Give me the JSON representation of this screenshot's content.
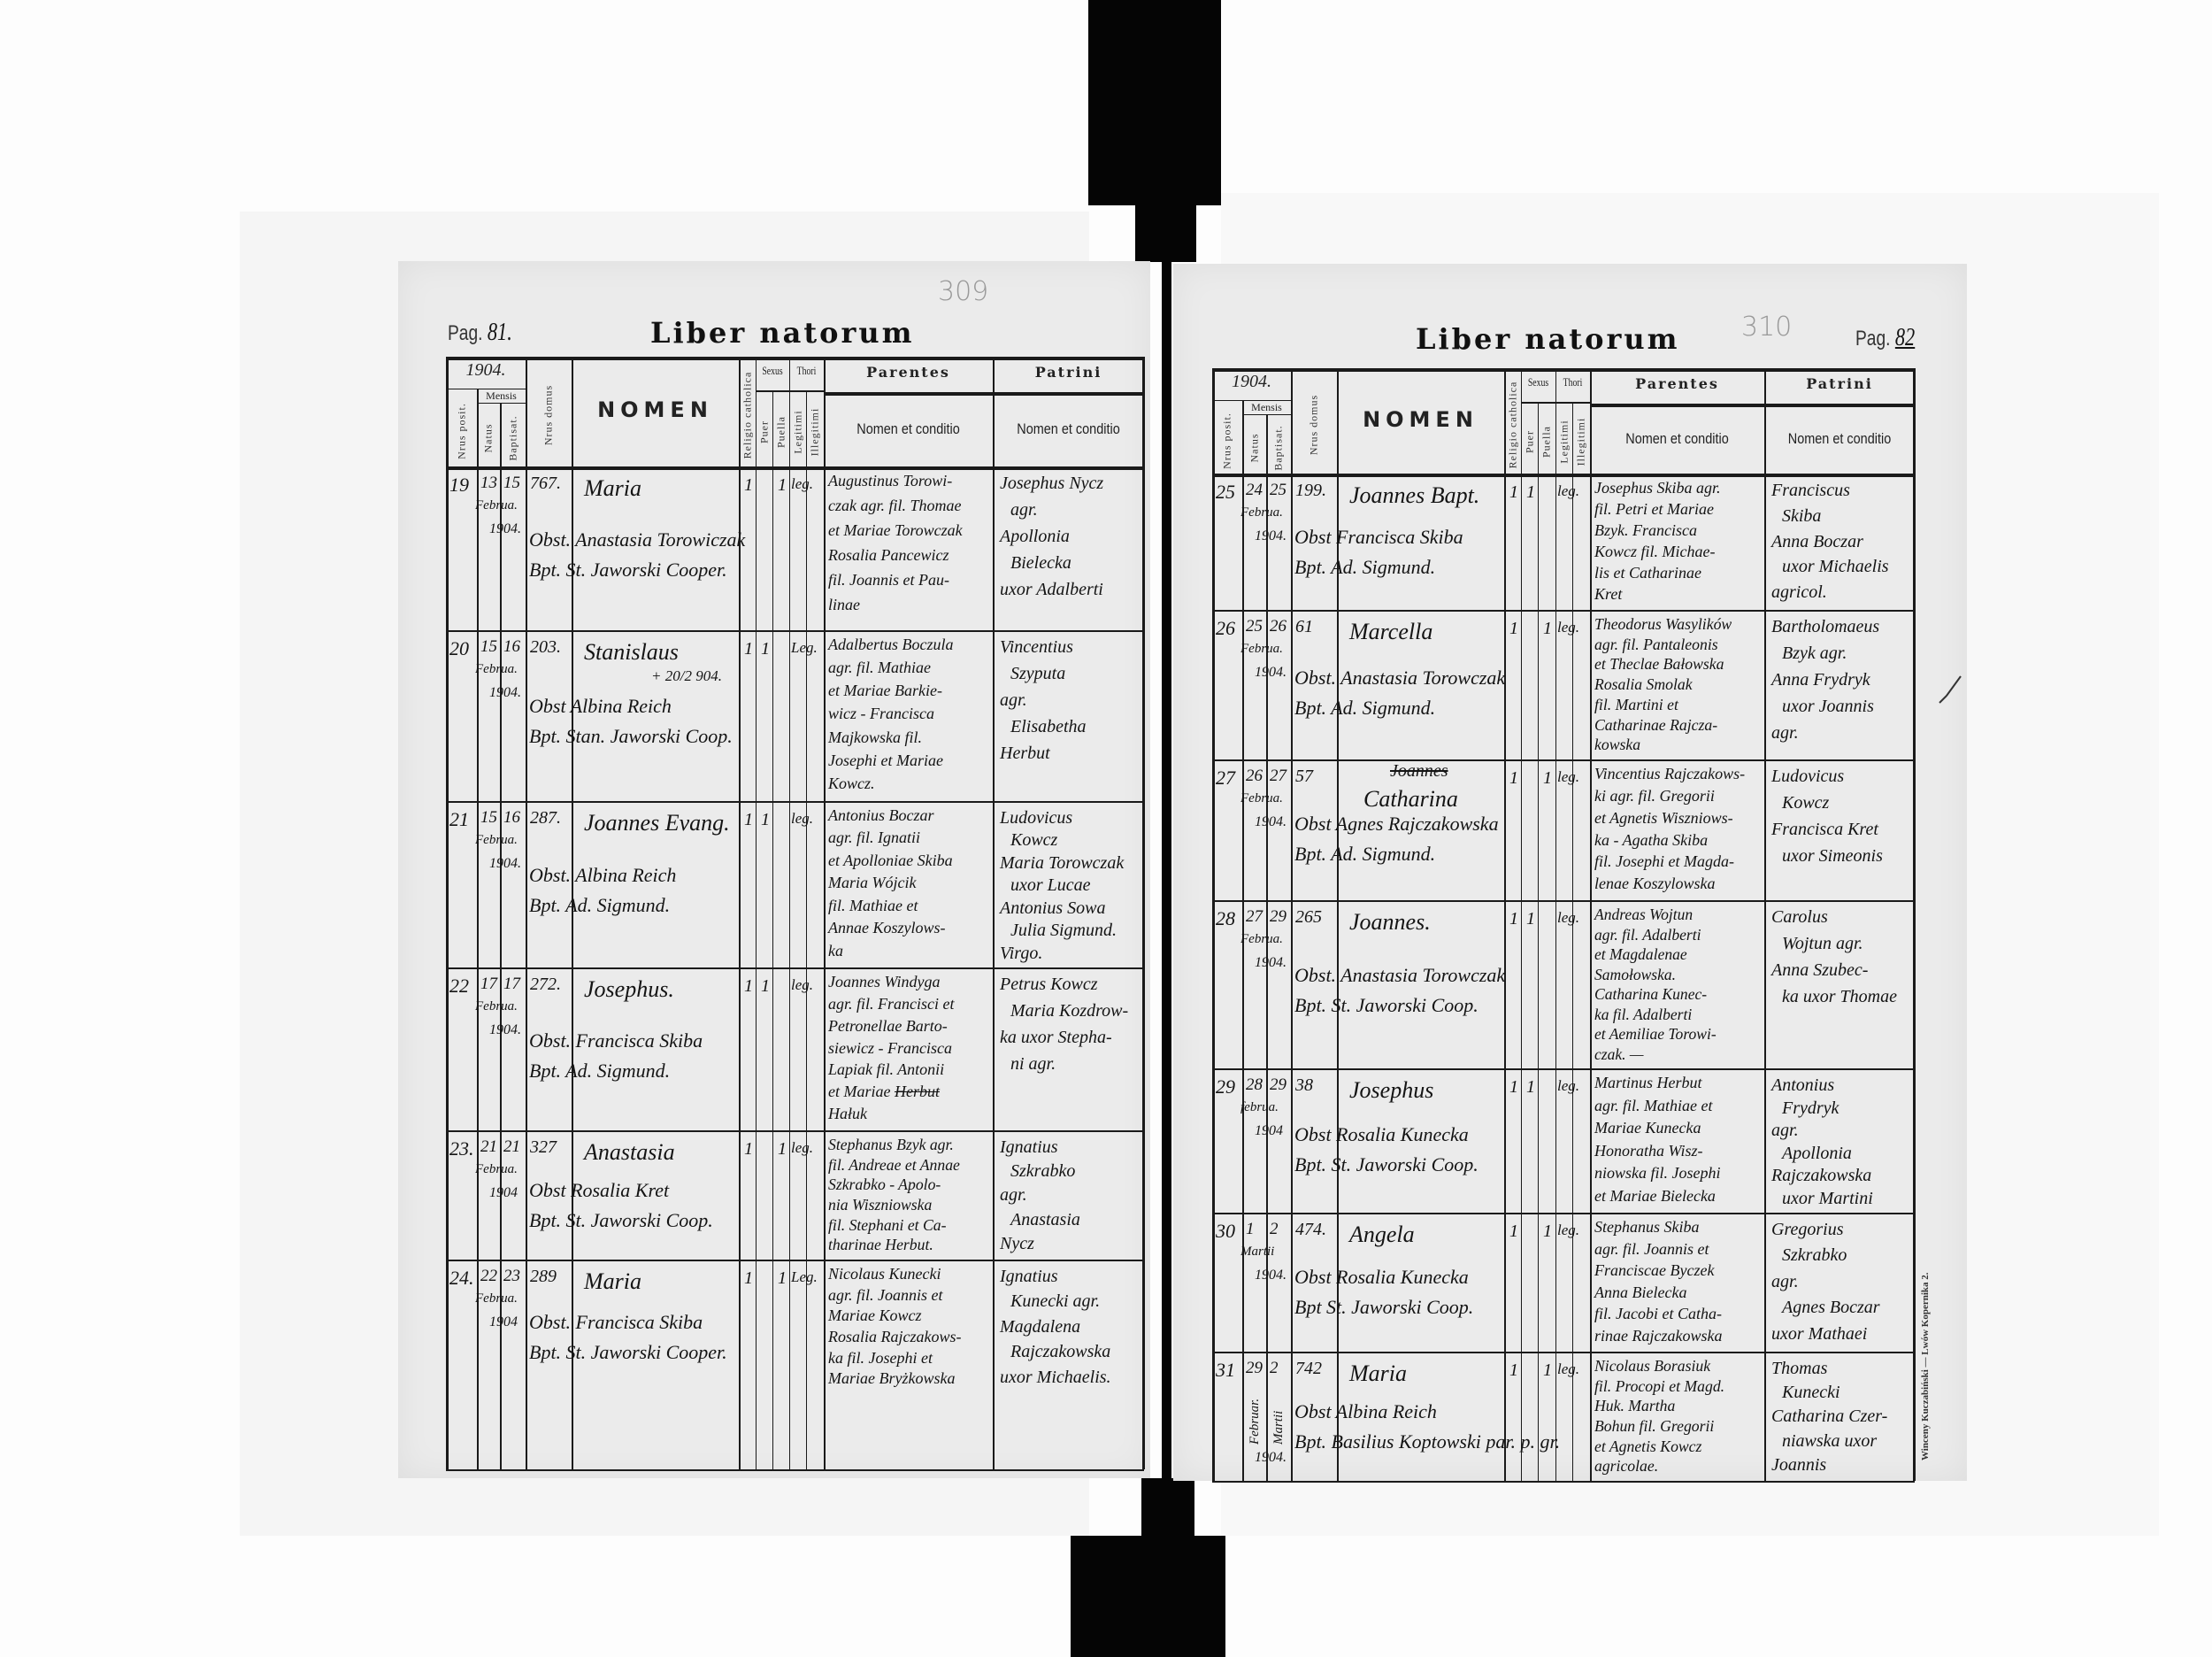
{
  "header_labels": {
    "year": "1904.",
    "nrus_posit": "Nrus posit.",
    "mensis": "Mensis",
    "natus": "Natus",
    "baptisat": "Baptisat.",
    "nrus_domus": "Nrus domus",
    "nomen": "NOMEN",
    "religio": "Religio catholica",
    "sexus": "Sexus",
    "puer": "Puer",
    "puella": "Puella",
    "thori": "Thori",
    "legitimi": "Legitimi",
    "illegitimi": "Illegitimi",
    "parentes": "Parentes",
    "parentes_sub": "Nomen et conditio",
    "patrini": "Patrini",
    "patrini_sub": "Nomen et conditio"
  },
  "pages": [
    {
      "title": "Liber natorum",
      "pag_label": "Pag.",
      "pag_number": "81.",
      "archive_number": "309",
      "entries": [
        {
          "nr": "19",
          "natus": "13",
          "baptisat": "15",
          "mensis": "Februa.",
          "annus": "1904.",
          "domus": "767.",
          "nomen": "Maria",
          "obst": "Obst. Anastasia Torowiczak",
          "bapt": "Bpt. St. Jaworski Cooper.",
          "religio": "1",
          "puer": "",
          "puella": "1",
          "thori": "leg.",
          "parentes": [
            "Augustinus Torowi-",
            "czak agr. fil. Thomae",
            "et Mariae Torowczak",
            "Rosalia Pancewicz",
            "fil. Joannis et Pau-",
            "linae"
          ],
          "patrini": [
            "Josephus Nycz",
            "agr.",
            "Apollonia",
            "Bielecka",
            "uxor Adalberti"
          ]
        },
        {
          "nr": "20",
          "natus": "15",
          "baptisat": "16",
          "mensis": "Februa.",
          "annus": "1904.",
          "domus": "203.",
          "nomen": "Stanislaus",
          "nota": "+ 20/2 904.",
          "obst": "Obst Albina Reich",
          "bapt": "Bpt. Stan. Jaworski Coop.",
          "religio": "1",
          "puer": "1",
          "puella": "",
          "thori": "Leg.",
          "parentes": [
            "Adalbertus Boczula",
            "agr. fil. Mathiae",
            "et Mariae Barkie-",
            "wicz - Francisca",
            "Majkowska fil.",
            "Josephi et Mariae",
            "Kowcz."
          ],
          "patrini": [
            "Vincentius",
            "Szyputa",
            "agr.",
            "Elisabetha",
            "Herbut"
          ]
        },
        {
          "nr": "21",
          "natus": "15",
          "baptisat": "16",
          "mensis": "Februa.",
          "annus": "1904.",
          "domus": "287.",
          "nomen": "Joannes Evang.",
          "obst": "Obst. Albina Reich",
          "bapt": "Bpt. Ad. Sigmund.",
          "religio": "1",
          "puer": "1",
          "puella": "",
          "thori": "leg.",
          "parentes": [
            "Antonius Boczar",
            "agr. fil. Ignatii",
            "et Apolloniae Skiba",
            "Maria Wójcik",
            "fil. Mathiae et",
            "Annae Koszylows-",
            "ka"
          ],
          "patrini": [
            "Ludovicus",
            "Kowcz",
            "Maria Torowczak",
            "uxor Lucae",
            "Antonius Sowa",
            "Julia Sigmund.",
            "Virgo."
          ]
        },
        {
          "nr": "22",
          "natus": "17",
          "baptisat": "17",
          "mensis": "Februa.",
          "annus": "1904.",
          "domus": "272.",
          "nomen": "Josephus.",
          "obst": "Obst. Francisca Skiba",
          "bapt": "Bpt. Ad. Sigmund.",
          "religio": "1",
          "puer": "1",
          "puella": "",
          "thori": "leg.",
          "parentes": [
            "Joannes Windyga",
            "agr. fil. Francisci et",
            "Petronellae Barto-",
            "siewicz - Francisca",
            "Lapiak fil. Antonii",
            {
              "text": "et Mariae ",
              "struck": "Herbut"
            },
            "Hałuk"
          ],
          "patrini": [
            "Petrus Kowcz",
            "Maria Kozdrow-",
            "ka uxor Stepha-",
            "ni agr."
          ]
        },
        {
          "nr": "23.",
          "natus": "21",
          "baptisat": "21",
          "mensis": "Februa.",
          "annus": "1904",
          "domus": "327",
          "nomen": "Anastasia",
          "obst": "Obst Rosalia Kret",
          "bapt": "Bpt. St. Jaworski Coop.",
          "religio": "1",
          "puer": "",
          "puella": "1",
          "thori": "leg.",
          "parentes": [
            "Stephanus Bzyk agr.",
            "fil. Andreae et Annae",
            "Szkrabko - Apolo-",
            "nia Wiszniowska",
            "fil. Stephani et Ca-",
            "tharinae Herbut."
          ],
          "patrini": [
            "Ignatius",
            "Szkrabko",
            "agr.",
            "Anastasia",
            "Nycz"
          ]
        },
        {
          "nr": "24.",
          "natus": "22",
          "baptisat": "23",
          "mensis": "Februa.",
          "annus": "1904",
          "domus": "289",
          "nomen": "Maria",
          "obst": "Obst. Francisca Skiba",
          "bapt": "Bpt. St. Jaworski Cooper.",
          "religio": "1",
          "puer": "",
          "puella": "1",
          "thori": "Leg.",
          "parentes": [
            "Nicolaus Kunecki",
            "agr. fil. Joannis et",
            "Mariae Kowcz",
            "Rosalia Rajczakows-",
            "ka fil. Josephi et",
            "Mariae Bryżkowska"
          ],
          "patrini": [
            "Ignatius",
            "Kunecki agr.",
            "Magdalena",
            "Rajczakowska",
            "uxor Michaelis."
          ]
        }
      ]
    },
    {
      "title": "Liber natorum",
      "pag_label": "Pag.",
      "pag_number": "82",
      "archive_number": "310",
      "printer": "Winceny Kuczabiński — Lwów Kopernika 2.",
      "entries": [
        {
          "nr": "25",
          "natus": "24",
          "baptisat": "25",
          "mensis": "Februa.",
          "annus": "1904.",
          "domus": "199.",
          "nomen": "Joannes Bapt.",
          "obst": "Obst Francisca Skiba",
          "bapt": "Bpt. Ad. Sigmund.",
          "religio": "1",
          "puer": "1",
          "puella": "",
          "thori": "leg.",
          "parentes": [
            "Josephus Skiba agr.",
            "fil. Petri et Mariae",
            "Bzyk. Francisca",
            "Kowcz fil. Michae-",
            "lis et Catharinae",
            "Kret"
          ],
          "patrini": [
            "Franciscus",
            "Skiba",
            "Anna Boczar",
            "uxor Michaelis",
            "agricol."
          ]
        },
        {
          "nr": "26",
          "natus": "25",
          "baptisat": "26",
          "mensis": "Februa.",
          "annus": "1904.",
          "domus": "61",
          "nomen": "Marcella",
          "obst": "Obst. Anastasia Torowczak",
          "bapt": "Bpt. Ad. Sigmund.",
          "religio": "1",
          "puer": "",
          "puella": "1",
          "thori": "leg.",
          "parentes": [
            "Theodorus Wasylików",
            "agr. fil. Pantaleonis",
            "et Theclae Bałowska",
            "Rosalia Smolak",
            "fil. Martini et",
            "Catharinae Rajcza-",
            "kowska"
          ],
          "patrini": [
            "Bartholomaeus",
            "Bzyk agr.",
            "Anna Frydryk",
            "uxor Joannis",
            "agr."
          ]
        },
        {
          "nr": "27",
          "natus": "26",
          "baptisat": "27",
          "mensis": "Februa.",
          "annus": "1904.",
          "domus": "57",
          "nomen_struck": "Joannes",
          "nomen": "Catharina",
          "obst": "Obst Agnes Rajczakowska",
          "bapt": "Bpt. Ad. Sigmund.",
          "religio": "1",
          "puer": "",
          "puella": "1",
          "thori": "leg.",
          "parentes": [
            "Vincentius Rajczakows-",
            "ki agr. fil. Gregorii",
            "et Agnetis Wiszniows-",
            "ka - Agatha Skiba",
            "fil. Josephi et Magda-",
            "lenae Koszylowska"
          ],
          "patrini": [
            "Ludovicus",
            "Kowcz",
            "Francisca Kret",
            "uxor Simeonis"
          ]
        },
        {
          "nr": "28",
          "natus": "27",
          "baptisat": "29",
          "mensis": "Februa.",
          "annus": "1904.",
          "domus": "265",
          "nomen": "Joannes.",
          "obst": "Obst. Anastasia Torowczak",
          "bapt": "Bpt. St. Jaworski Coop.",
          "religio": "1",
          "puer": "1",
          "puella": "",
          "thori": "leg.",
          "parentes": [
            "Andreas Wojtun",
            "agr. fil. Adalberti",
            "et Magdalenae",
            "Samołowska.",
            "Catharina Kunec-",
            "ka fil. Adalberti",
            "et Aemiliae Torowi-",
            "czak. —"
          ],
          "patrini": [
            "Carolus",
            "Wojtun agr.",
            "Anna Szubec-",
            "ka uxor Thomae"
          ]
        },
        {
          "nr": "29",
          "natus": "28",
          "baptisat": "29",
          "mensis": "februa.",
          "annus": "1904",
          "domus": "38",
          "nomen": "Josephus",
          "obst": "Obst Rosalia Kunecka",
          "bapt": "Bpt. St. Jaworski Coop.",
          "religio": "1",
          "puer": "1",
          "puella": "",
          "thori": "leg.",
          "parentes": [
            "Martinus Herbut",
            "agr. fil. Mathiae et",
            "Mariae Kunecka",
            "Honoratha Wisz-",
            "niowska fil. Josephi",
            "et Mariae Bielecka"
          ],
          "patrini": [
            "Antonius",
            "Frydryk",
            "agr.",
            "Apollonia",
            "Rajczakowska",
            "uxor Martini"
          ]
        },
        {
          "nr": "30",
          "natus": "1",
          "baptisat": "2",
          "mensis": "Martii",
          "annus": "1904.",
          "domus": "474.",
          "nomen": "Angela",
          "obst": "Obst Rosalia Kunecka",
          "bapt": "Bpt St. Jaworski Coop.",
          "religio": "1",
          "puer": "",
          "puella": "1",
          "thori": "leg.",
          "parentes": [
            "Stephanus Skiba",
            "agr. fil. Joannis et",
            "Franciscae Byczek",
            "Anna Bielecka",
            "fil. Jacobi et Catha-",
            "rinae Rajczakowska"
          ],
          "patrini": [
            "Gregorius",
            "Szkrabko",
            "agr.",
            "Agnes Boczar",
            "uxor Mathaei"
          ]
        },
        {
          "nr": "31",
          "natus": "29",
          "baptisat": "2",
          "mensis_natus": "Februar.",
          "mensis_baptisat": "Martii",
          "annus": "1904.",
          "domus": "742",
          "nomen": "Maria",
          "obst": "Obst Albina Reich",
          "bapt": "Bpt. Basilius Koptowski par. p. gr.",
          "religio": "1",
          "puer": "",
          "puella": "1",
          "thori": "leg.",
          "parentes": [
            "Nicolaus Borasiuk",
            "fil. Procopi et Magd.",
            "Huk. Martha",
            "Bohun fil. Gregorii",
            "et Agnetis Kowcz",
            "agricolae."
          ],
          "patrini": [
            "Thomas",
            "Kunecki",
            "Catharina Czer-",
            "niawska uxor",
            "Joannis"
          ]
        }
      ]
    }
  ],
  "colors": {
    "paper": "#ebebeb",
    "ink": "#141414",
    "binding": "#050505",
    "background": "#fdfdfd"
  }
}
